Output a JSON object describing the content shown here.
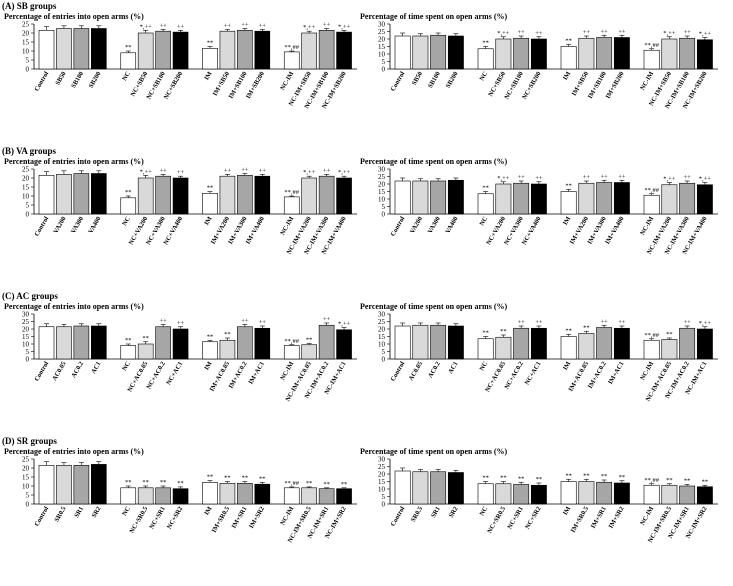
{
  "chart_data": [
    {
      "panel": "(A) SB groups",
      "charts": [
        {
          "type": "bar",
          "title": "Percentage of entries into open arms (%)",
          "ylim": [
            0,
            25
          ],
          "yticks": [
            0,
            5,
            10,
            15,
            20,
            25
          ],
          "categories": [
            "Control",
            "SB50",
            "SB100",
            "SB200",
            "NC",
            "NC+SB50",
            "NC+SB100",
            "NC+SB200",
            "IM",
            "IM+SB50",
            "IM+SB100",
            "IM+SB200",
            "NC-IM",
            "NC-IM+SB50",
            "NC-IM+SB100",
            "NC-IM+SB200"
          ],
          "values": [
            21.5,
            22.5,
            22.5,
            22.5,
            9.0,
            20.0,
            21.0,
            20.5,
            11.5,
            21.0,
            21.5,
            21.0,
            9.5,
            20.0,
            21.5,
            20.5
          ],
          "errors": [
            2.0,
            1.5,
            1.5,
            1.5,
            1.0,
            1.5,
            1.0,
            1.0,
            1.0,
            1.0,
            1.0,
            1.0,
            0.5,
            1.0,
            1.0,
            1.0
          ],
          "annotations": [
            "",
            "",
            "",
            "",
            "**",
            "*,++",
            "++",
            "++",
            "**",
            "++",
            "++",
            "++",
            "**,##",
            "*,++",
            "++",
            "*,++"
          ]
        },
        {
          "type": "bar",
          "title": "Percentage of time spent on open arms (%)",
          "ylim": [
            0,
            30
          ],
          "yticks": [
            0,
            5,
            10,
            15,
            20,
            25,
            30
          ],
          "categories": [
            "Control",
            "SB50",
            "SB100",
            "SB200",
            "NC",
            "NC+SB50",
            "NC+SB100",
            "NC+SB200",
            "IM",
            "IM+SB50",
            "IM+SB100",
            "IM+SB200",
            "NC-IM",
            "NC-IM+SB50",
            "NC-IM+SB100",
            "NC-IM+SB200"
          ],
          "values": [
            22.0,
            22.0,
            22.5,
            22.0,
            13.5,
            20.0,
            20.5,
            20.0,
            15.0,
            20.5,
            21.0,
            21.0,
            12.5,
            20.0,
            20.5,
            19.5
          ],
          "errors": [
            2.0,
            1.5,
            1.5,
            1.5,
            1.5,
            1.5,
            1.5,
            1.5,
            1.5,
            1.5,
            1.5,
            1.5,
            1.0,
            1.5,
            1.5,
            1.5
          ],
          "annotations": [
            "",
            "",
            "",
            "",
            "**",
            "*,++",
            "++",
            "++",
            "**",
            "++",
            "++",
            "++",
            "**,##",
            "*,++",
            "++",
            "*,++"
          ]
        }
      ]
    },
    {
      "panel": "(B) VA groups",
      "charts": [
        {
          "type": "bar",
          "title": "Percentage of entries into open arms (%)",
          "ylim": [
            0,
            25
          ],
          "yticks": [
            0,
            5,
            10,
            15,
            20,
            25
          ],
          "categories": [
            "Control",
            "VA200",
            "VA300",
            "VA400",
            "NC",
            "NC+VA200",
            "NC+VA300",
            "NC+VA400",
            "IM",
            "IM+VA200",
            "IM+VA300",
            "IM+VA400",
            "NC-IM",
            "NC-IM+VA200",
            "NC-IM+VA300",
            "NC-IM+VA400"
          ],
          "values": [
            21.5,
            22.0,
            22.5,
            22.5,
            9.0,
            20.0,
            21.0,
            20.0,
            11.5,
            21.0,
            21.5,
            21.0,
            9.5,
            20.0,
            21.0,
            20.0
          ],
          "errors": [
            2.0,
            2.0,
            1.5,
            1.5,
            1.0,
            1.5,
            1.0,
            1.0,
            1.0,
            1.0,
            1.0,
            1.0,
            0.5,
            1.0,
            1.0,
            1.0
          ],
          "annotations": [
            "",
            "",
            "",
            "",
            "**",
            "*,++",
            "++",
            "++",
            "**",
            "++",
            "++",
            "++",
            "**,##",
            "*,++",
            "++",
            "*,++"
          ]
        },
        {
          "type": "bar",
          "title": "Percentage of time spent on open arms (%)",
          "ylim": [
            0,
            30
          ],
          "yticks": [
            0,
            5,
            10,
            15,
            20,
            25,
            30
          ],
          "categories": [
            "Control",
            "VA200",
            "VA300",
            "VA400",
            "NC",
            "NC+VA200",
            "NC+VA300",
            "NC+VA400",
            "IM",
            "IM+VA200",
            "IM+VA300",
            "IM+VA400",
            "NC-IM",
            "NC-IM+VA200",
            "NC-IM+VA300",
            "NC-IM+VA400"
          ],
          "values": [
            22.0,
            22.0,
            22.0,
            22.5,
            13.5,
            20.0,
            20.5,
            20.0,
            15.0,
            20.5,
            21.0,
            21.0,
            12.5,
            19.5,
            20.5,
            19.5
          ],
          "errors": [
            2.0,
            1.5,
            1.5,
            1.5,
            1.5,
            1.5,
            1.5,
            1.5,
            1.5,
            1.5,
            1.5,
            1.5,
            1.0,
            1.5,
            1.5,
            1.5
          ],
          "annotations": [
            "",
            "",
            "",
            "",
            "**",
            "*,++",
            "++",
            "++",
            "**",
            "++",
            "++",
            "++",
            "**,##",
            "*,++",
            "++",
            "*,++"
          ]
        }
      ]
    },
    {
      "panel": "(C) AC groups",
      "charts": [
        {
          "type": "bar",
          "title": "Percentage of entries into open arms (%)",
          "ylim": [
            0,
            30
          ],
          "yticks": [
            0,
            5,
            10,
            15,
            20,
            25,
            30
          ],
          "categories": [
            "Control",
            "AC0.05",
            "AC0.2",
            "AC1",
            "NC",
            "NC+AC0.05",
            "NC+AC0.2",
            "NC+AC1",
            "IM",
            "IM+AC0.05",
            "IM+AC0.2",
            "IM+AC1",
            "NC-IM",
            "NC-IM+AC0.05",
            "NC-IM+AC0.2",
            "NC-IM+AC1"
          ],
          "values": [
            21.5,
            21.5,
            22.0,
            22.0,
            9.0,
            10.0,
            21.5,
            20.0,
            11.5,
            12.5,
            21.5,
            20.5,
            9.0,
            9.5,
            22.5,
            19.5
          ],
          "errors": [
            2.0,
            1.5,
            1.5,
            1.5,
            1.0,
            1.5,
            1.5,
            1.5,
            1.0,
            1.5,
            1.5,
            1.5,
            0.5,
            1.0,
            1.5,
            1.5
          ],
          "annotations": [
            "",
            "",
            "",
            "",
            "**",
            "**",
            "++",
            "++",
            "**",
            "**",
            "++",
            "++",
            "**,##",
            "**",
            "++",
            "*,++"
          ]
        },
        {
          "type": "bar",
          "title": "Percentage of time spent on open arms (%)",
          "ylim": [
            0,
            30
          ],
          "yticks": [
            0,
            5,
            10,
            15,
            20,
            25,
            30
          ],
          "categories": [
            "Control",
            "AC0.05",
            "AC0.2",
            "AC1",
            "NC",
            "NC+AC0.05",
            "NC+AC0.2",
            "NC+AC1",
            "IM",
            "IM+AC0.05",
            "IM+AC0.2",
            "IM+AC1",
            "NC-IM",
            "NC-IM+AC0.05",
            "NC-IM+AC0.2",
            "NC-IM+AC1"
          ],
          "values": [
            22.0,
            22.5,
            22.5,
            22.0,
            13.5,
            14.5,
            20.5,
            20.5,
            15.0,
            17.0,
            21.0,
            20.5,
            12.5,
            13.0,
            20.5,
            20.0
          ],
          "errors": [
            2.0,
            1.5,
            1.5,
            1.5,
            1.5,
            1.5,
            1.5,
            1.5,
            1.5,
            1.5,
            1.5,
            1.5,
            1.0,
            1.0,
            1.5,
            1.5
          ],
          "annotations": [
            "",
            "",
            "",
            "",
            "**",
            "**",
            "++",
            "++",
            "**",
            "**",
            "++",
            "++",
            "**,##",
            "**",
            "++",
            "*,++"
          ]
        }
      ]
    },
    {
      "panel": "(D) SR groups",
      "charts": [
        {
          "type": "bar",
          "title": "Percentage of entries into open arms (%)",
          "ylim": [
            0,
            25
          ],
          "yticks": [
            0,
            5,
            10,
            15,
            20,
            25
          ],
          "categories": [
            "Control",
            "SR0.5",
            "SR1",
            "SR2",
            "NC",
            "NC+SR0.5",
            "NC+SR1",
            "NC+SR2",
            "IM",
            "IM+SR0.5",
            "IM+SR1",
            "IM+SR2",
            "NC-IM",
            "NC-IM+SR0.5",
            "NC-IM+SR1",
            "NC-IM+SR2"
          ],
          "values": [
            21.5,
            21.5,
            21.5,
            22.0,
            9.0,
            9.0,
            9.0,
            8.5,
            12.0,
            11.5,
            11.5,
            11.0,
            9.0,
            9.0,
            8.5,
            8.5
          ],
          "errors": [
            2.0,
            1.5,
            1.5,
            1.5,
            1.0,
            1.0,
            1.0,
            1.0,
            1.0,
            1.0,
            1.0,
            1.0,
            0.5,
            0.5,
            0.5,
            0.5
          ],
          "annotations": [
            "",
            "",
            "",
            "",
            "**",
            "**",
            "**",
            "**",
            "**",
            "**",
            "**",
            "**",
            "**,##",
            "**",
            "**",
            "**"
          ]
        },
        {
          "type": "bar",
          "title": "Percentage of time spent on open arms (%)",
          "ylim": [
            0,
            30
          ],
          "yticks": [
            0,
            5,
            10,
            15,
            20,
            25,
            30
          ],
          "categories": [
            "Control",
            "SR0.5",
            "SR1",
            "SR2",
            "NC",
            "NC+SR0.5",
            "NC+SR1",
            "NC+SR2",
            "IM",
            "IM+SR0.5",
            "IM+SR1",
            "IM+SR2",
            "NC-IM",
            "NC-IM+SR0.5",
            "NC-IM+SR1",
            "NC-IM+SR2"
          ],
          "values": [
            22.0,
            21.5,
            21.5,
            21.0,
            13.5,
            13.5,
            13.0,
            12.5,
            15.0,
            15.0,
            14.5,
            14.0,
            12.5,
            12.5,
            12.0,
            11.5
          ],
          "errors": [
            2.0,
            1.5,
            1.5,
            1.5,
            1.5,
            1.5,
            1.5,
            1.5,
            1.5,
            1.5,
            1.5,
            1.5,
            1.0,
            1.0,
            1.0,
            1.0
          ],
          "annotations": [
            "",
            "",
            "",
            "",
            "**",
            "**",
            "**",
            "**",
            "**",
            "**",
            "**",
            "**",
            "**,##",
            "**",
            "**",
            "**"
          ]
        }
      ]
    }
  ],
  "bar_colors": [
    "#ffffff",
    "#d9d9d9",
    "#a6a6a6",
    "#000000"
  ],
  "axis_color": "#000000"
}
